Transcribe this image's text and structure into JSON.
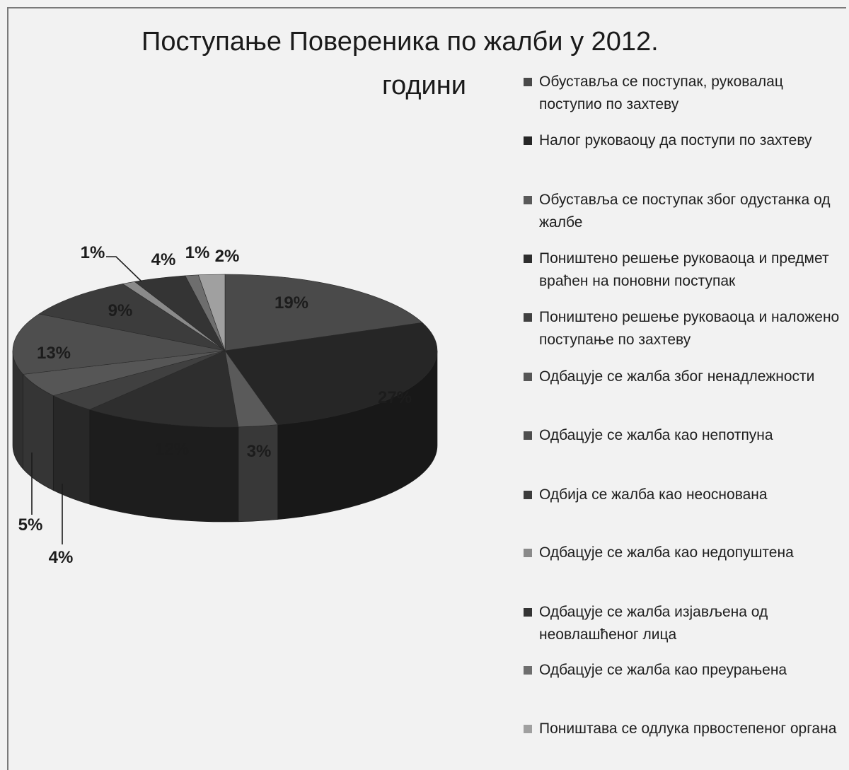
{
  "chart_data": {
    "type": "pie",
    "title_line1": "Поступање Повереника по жалби у 2012.",
    "title_line2": "години",
    "series": [
      {
        "label": "Обуставља се  поступак,  руковалац поступио по захтеву",
        "value": 19,
        "data_label": "19%",
        "color": "#4a4a4a"
      },
      {
        "label": " Налог руковаоцу да поступи по захтеву",
        "value": 27,
        "data_label": "27%",
        "color": "#262626"
      },
      {
        "label": "Обуставља се поступак због одустанка од жалбе",
        "value": 3,
        "data_label": "3%",
        "color": "#5a5a5a"
      },
      {
        "label": "  Поништено решење руковаоца и предмет враћен на поновни поступак",
        "value": 12,
        "data_label": "12%",
        "color": "#2e2e2e"
      },
      {
        "label": "Поништено решење руковаоца и наложено поступање по  захтеву",
        "value": 4,
        "data_label": "4%",
        "color": "#404040"
      },
      {
        "label": "Одбацује се жалба због ненадлежности",
        "value": 5,
        "data_label": "5%",
        "color": "#565656"
      },
      {
        "label": "Одбацује се жалба као непотпуна",
        "value": 13,
        "data_label": "13%",
        "color": "#4e4e4e"
      },
      {
        "label": "Одбија се жалба  као неоснована",
        "value": 9,
        "data_label": "9%",
        "color": "#3c3c3c"
      },
      {
        "label": "Одбацује се жалба као недопуштена",
        "value": 1,
        "data_label": "1%",
        "color": "#8a8a8a"
      },
      {
        "label": "Одбацује се жалба изјављена од неовлашћеног лица",
        "value": 4,
        "data_label": "4%",
        "color": "#343434"
      },
      {
        "label": "Одбацује се жалба као преурањена",
        "value": 1,
        "data_label": "1%",
        "color": "#6e6e6e"
      },
      {
        "label": "Поништава се одлука првостепеног органа",
        "value": 2,
        "data_label": "2%",
        "color": "#a0a0a0"
      }
    ],
    "legend_placement": "right"
  }
}
